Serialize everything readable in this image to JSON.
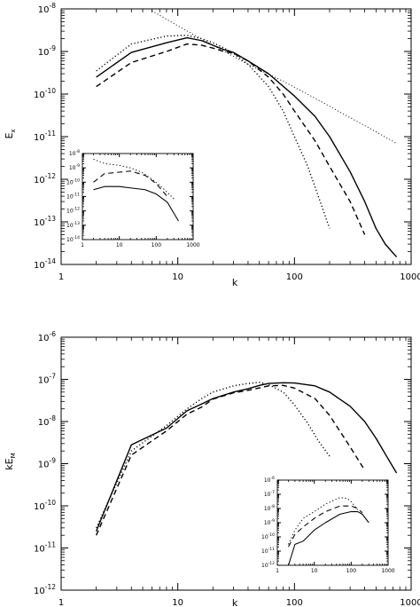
{
  "chart_data": [
    {
      "type": "line",
      "panel": "top",
      "xlabel": "k",
      "ylabel": "E_x",
      "xscale": "log",
      "yscale": "log",
      "xlim": [
        1,
        1000
      ],
      "ylim": [
        1e-14,
        1e-08
      ],
      "x_tick_labels": [
        "1",
        "10",
        "100",
        "1000"
      ],
      "y_tick_labels": [
        {
          "base": "10",
          "exp": "-14"
        },
        {
          "base": "10",
          "exp": "-13"
        },
        {
          "base": "10",
          "exp": "-12"
        },
        {
          "base": "10",
          "exp": "-11"
        },
        {
          "base": "10",
          "exp": "-10"
        },
        {
          "base": "10",
          "exp": "-9"
        },
        {
          "base": "10",
          "exp": "-8"
        }
      ],
      "series": [
        {
          "style": "solid",
          "x": [
            2,
            4,
            8,
            12,
            16,
            20,
            25,
            30,
            40,
            60,
            100,
            150,
            200,
            300,
            400,
            500,
            600,
            750
          ],
          "y": [
            2.5e-10,
            9.5e-10,
            1.6e-09,
            2.1e-09,
            1.8e-09,
            1.4e-09,
            1.1e-09,
            9.5e-10,
            6e-10,
            3e-10,
            9e-11,
            3e-11,
            1e-11,
            1.5e-12,
            3e-13,
            7e-14,
            3e-14,
            1.5e-14
          ]
        },
        {
          "style": "dashed",
          "x": [
            2,
            4,
            8,
            12,
            16,
            20,
            25,
            30,
            40,
            60,
            80,
            100,
            150,
            200,
            300,
            400
          ],
          "y": [
            1.5e-10,
            5.5e-10,
            1e-09,
            1.5e-09,
            1.4e-09,
            1.2e-09,
            1e-09,
            9e-10,
            6e-10,
            2.5e-10,
            1e-10,
            4e-11,
            8e-12,
            2e-12,
            3e-13,
            5e-14
          ]
        },
        {
          "style": "dotted",
          "x": [
            2,
            4,
            8,
            12,
            16,
            20,
            25,
            30,
            40,
            60,
            80,
            100,
            130,
            160,
            200
          ],
          "y": [
            3.5e-10,
            1.5e-09,
            2.3e-09,
            2.4e-09,
            2e-09,
            1.6e-09,
            1.2e-09,
            9e-10,
            5e-10,
            1.5e-10,
            4e-11,
            1e-11,
            2e-12,
            4e-13,
            7e-14
          ]
        },
        {
          "style": "dotted-thin",
          "x": [
            6,
            10,
            20,
            40,
            80,
            150,
            300,
            500,
            750
          ],
          "y": [
            9e-09,
            4e-09,
            1.4e-09,
            5e-10,
            2e-10,
            8e-11,
            2.8e-11,
            1.3e-11,
            7e-12
          ]
        }
      ],
      "inset": {
        "xlim": [
          1,
          1000
        ],
        "ylim": [
          1e-14,
          1e-08
        ],
        "x_tick_labels": [
          "1",
          "10",
          "100",
          "1000"
        ],
        "y_tick_labels": [
          {
            "base": "10",
            "exp": "-14"
          },
          {
            "base": "10",
            "exp": "-13"
          },
          {
            "base": "10",
            "exp": "-12"
          },
          {
            "base": "10",
            "exp": "-11"
          },
          {
            "base": "10",
            "exp": "-10"
          },
          {
            "base": "10",
            "exp": "-9"
          },
          {
            "base": "10",
            "exp": "-8"
          }
        ],
        "series": [
          {
            "style": "solid",
            "x": [
              2,
              4,
              10,
              20,
              50,
              100,
              200,
              400
            ],
            "y": [
              3e-11,
              5e-11,
              5e-11,
              4e-11,
              3e-11,
              1.5e-11,
              4e-12,
              2e-13
            ]
          },
          {
            "style": "dashed",
            "x": [
              2,
              4,
              10,
              20,
              50,
              100,
              200
            ],
            "y": [
              1e-10,
              4e-10,
              5e-10,
              6e-10,
              3e-10,
              8e-11,
              1e-11
            ]
          },
          {
            "style": "dotted",
            "x": [
              2,
              4,
              10,
              20,
              40,
              80,
              150,
              300
            ],
            "y": [
              4e-09,
              2e-09,
              1.5e-09,
              1e-09,
              5e-10,
              1.5e-10,
              4e-11,
              7e-12
            ]
          }
        ]
      }
    },
    {
      "type": "line",
      "panel": "bottom",
      "xlabel": "k",
      "ylabel": "kE_M",
      "xscale": "log",
      "yscale": "log",
      "xlim": [
        1,
        1000
      ],
      "ylim": [
        1e-12,
        1e-06
      ],
      "x_tick_labels": [
        "1",
        "10",
        "100",
        "1000"
      ],
      "y_tick_labels": [
        {
          "base": "10",
          "exp": "-12"
        },
        {
          "base": "10",
          "exp": "-11"
        },
        {
          "base": "10",
          "exp": "-10"
        },
        {
          "base": "10",
          "exp": "-9"
        },
        {
          "base": "10",
          "exp": "-8"
        },
        {
          "base": "10",
          "exp": "-7"
        },
        {
          "base": "10",
          "exp": "-6"
        }
      ],
      "series": [
        {
          "style": "solid",
          "x": [
            2,
            4,
            8,
            12,
            16,
            20,
            30,
            40,
            50,
            60,
            80,
            100,
            150,
            200,
            300,
            400,
            500,
            600,
            750
          ],
          "y": [
            2.5e-11,
            2.8e-09,
            7e-09,
            1.8e-08,
            2.6e-08,
            3.5e-08,
            5e-08,
            6e-08,
            7.2e-08,
            8e-08,
            8.3e-08,
            8.2e-08,
            7e-08,
            5e-08,
            2.3e-08,
            1e-08,
            4e-09,
            1.7e-09,
            6e-10
          ]
        },
        {
          "style": "dashed",
          "x": [
            2,
            4,
            8,
            12,
            16,
            20,
            30,
            40,
            60,
            80,
            100,
            150,
            200,
            300,
            400
          ],
          "y": [
            2e-11,
            1.6e-09,
            6e-09,
            1.5e-08,
            2.2e-08,
            3.4e-08,
            4.8e-08,
            5.5e-08,
            7e-08,
            7.2e-08,
            6.2e-08,
            3.5e-08,
            1.4e-08,
            2.5e-09,
            7e-10
          ]
        },
        {
          "style": "dotted",
          "x": [
            2,
            4,
            8,
            12,
            16,
            20,
            30,
            40,
            50,
            60,
            80,
            100,
            130,
            160,
            200
          ],
          "y": [
            3e-11,
            2e-09,
            8e-09,
            2e-08,
            3.5e-08,
            5e-08,
            7e-08,
            8e-08,
            8.5e-08,
            7.5e-08,
            5e-08,
            2.5e-08,
            9e-09,
            3.5e-09,
            1.5e-09
          ]
        }
      ],
      "inset": {
        "xlim": [
          1,
          1000
        ],
        "ylim": [
          1e-12,
          1e-06
        ],
        "x_tick_labels": [
          "1",
          "10",
          "100",
          "1000"
        ],
        "y_tick_labels": [
          {
            "base": "10",
            "exp": "-12"
          },
          {
            "base": "10",
            "exp": "-11"
          },
          {
            "base": "10",
            "exp": "-10"
          },
          {
            "base": "10",
            "exp": "-9"
          },
          {
            "base": "10",
            "exp": "-8"
          },
          {
            "base": "10",
            "exp": "-7"
          },
          {
            "base": "10",
            "exp": "-6"
          }
        ],
        "series": [
          {
            "style": "solid",
            "x": [
              2,
              3,
              5,
              10,
              20,
              50,
              100,
              150,
              200,
              300
            ],
            "y": [
              1e-12,
              3e-11,
              5e-11,
              3e-10,
              1e-09,
              4e-09,
              6e-09,
              6e-09,
              4e-09,
              1e-09
            ]
          },
          {
            "style": "dashed",
            "x": [
              2,
              3,
              5,
              10,
              20,
              50,
              100,
              150,
              200
            ],
            "y": [
              2e-11,
              1.5e-10,
              5e-10,
              2e-09,
              6e-09,
              1.5e-08,
              1.5e-08,
              1e-08,
              5e-09
            ]
          },
          {
            "style": "dotted",
            "x": [
              2,
              3,
              5,
              10,
              20,
              50,
              80,
              100,
              150
            ],
            "y": [
              3e-11,
              3e-10,
              2e-09,
              6e-09,
              2e-08,
              6e-08,
              5e-08,
              3e-08,
              8e-09
            ]
          }
        ]
      }
    }
  ]
}
